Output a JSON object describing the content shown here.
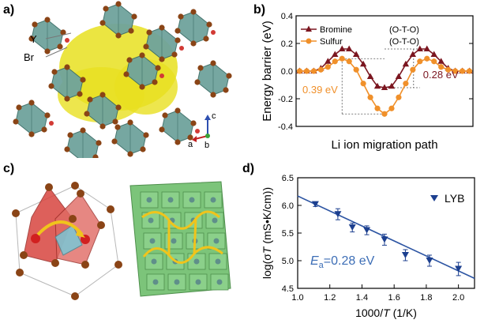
{
  "panels": {
    "a": {
      "letter": "a)",
      "labels": {
        "y": "Y",
        "br": "Br"
      },
      "axes": {
        "a": "a",
        "b": "b",
        "c": "c"
      }
    },
    "b": {
      "letter": "b)"
    },
    "c": {
      "letter": "c)"
    },
    "d": {
      "letter": "d)"
    }
  },
  "colors": {
    "octahedron": "#6fa39c",
    "octahedron_edge": "#3e6f69",
    "bromine_atom": "#8a4416",
    "yttrium_atom": "#d23a35",
    "isosurface": "#e8e020",
    "bromine_series": "#7b1620",
    "sulfur_series": "#f0902a",
    "lyb_series": "#1c3f8f",
    "fit_line": "#2d55a3",
    "ea_text": "#3d6eb6",
    "diffusion_arrow": "#f0c41c"
  },
  "chart_data": [
    {
      "type": "line",
      "xlabel": "Li ion migration path",
      "ylabel": "Energy barrier (eV)",
      "xticks": [],
      "ylim": [
        -0.4,
        0.4
      ],
      "yticks": [
        "-0.4",
        "-0.2",
        "0.0",
        "0.2",
        "0.4"
      ],
      "series": [
        {
          "name": "Bromine",
          "legend_suffix": "(O-T-O)",
          "marker": "triangle",
          "x": [
            0,
            1,
            2,
            3,
            4,
            5,
            6,
            7,
            8,
            9,
            10,
            11,
            12,
            13,
            14,
            15,
            16,
            17,
            18,
            19,
            20,
            21,
            22,
            23,
            24
          ],
          "y": [
            0.0,
            0.0,
            0.0,
            0.02,
            0.07,
            0.12,
            0.16,
            0.16,
            0.12,
            0.05,
            -0.04,
            -0.11,
            -0.12,
            -0.11,
            -0.04,
            0.05,
            0.12,
            0.16,
            0.16,
            0.12,
            0.07,
            0.02,
            0.0,
            0.0,
            0.0
          ]
        },
        {
          "name": "Sulfur",
          "legend_suffix": "(O-T-O)",
          "marker": "circle",
          "x": [
            0,
            1,
            2,
            3,
            4,
            5,
            6,
            7,
            8,
            9,
            10,
            11,
            12,
            13,
            14,
            15,
            16,
            17,
            18,
            19,
            20,
            21,
            22,
            23,
            24
          ],
          "y": [
            0.0,
            0.0,
            0.0,
            0.01,
            0.03,
            0.07,
            0.09,
            0.07,
            0.01,
            -0.09,
            -0.19,
            -0.27,
            -0.31,
            -0.27,
            -0.19,
            -0.09,
            0.01,
            0.07,
            0.09,
            0.07,
            0.03,
            0.01,
            0.0,
            0.0,
            0.0
          ]
        }
      ],
      "annotations": [
        {
          "text": "0.39 eV",
          "series": "Sulfur"
        },
        {
          "text": "0.28 eV",
          "series": "Bromine"
        }
      ]
    },
    {
      "type": "scatter",
      "xlabel": "1000/T (1/K)",
      "xlabel_parts": {
        "pre": "1000/",
        "italic": "T",
        "post": " (1/K)"
      },
      "ylabel": "log(σT (mS•K/cm))",
      "ylabel_parts": {
        "pre": "log(σ",
        "italic": "T",
        "post": " (mS•K/cm))"
      },
      "xlim": [
        1.0,
        2.1
      ],
      "xticks": [
        "1.0",
        "1.2",
        "1.4",
        "1.6",
        "1.8",
        "2.0"
      ],
      "ylim": [
        4.5,
        6.5
      ],
      "yticks": [
        "4.5",
        "5.0",
        "5.5",
        "6.0",
        "6.5"
      ],
      "legend": "top-right",
      "series": [
        {
          "name": "LYB",
          "marker": "triangle-down",
          "x": [
            1.11,
            1.25,
            1.34,
            1.43,
            1.54,
            1.67,
            1.82,
            2.0
          ],
          "y": [
            6.02,
            5.84,
            5.6,
            5.55,
            5.38,
            5.1,
            5.0,
            4.85
          ],
          "err": [
            0.04,
            0.1,
            0.08,
            0.08,
            0.1,
            0.1,
            0.1,
            0.12
          ]
        }
      ],
      "fit_line": {
        "x": [
          1.0,
          2.1
        ],
        "y": [
          6.17,
          4.68
        ]
      },
      "annotation": {
        "symbol": "E",
        "subscript": "a",
        "text": "=0.28 eV"
      }
    }
  ]
}
